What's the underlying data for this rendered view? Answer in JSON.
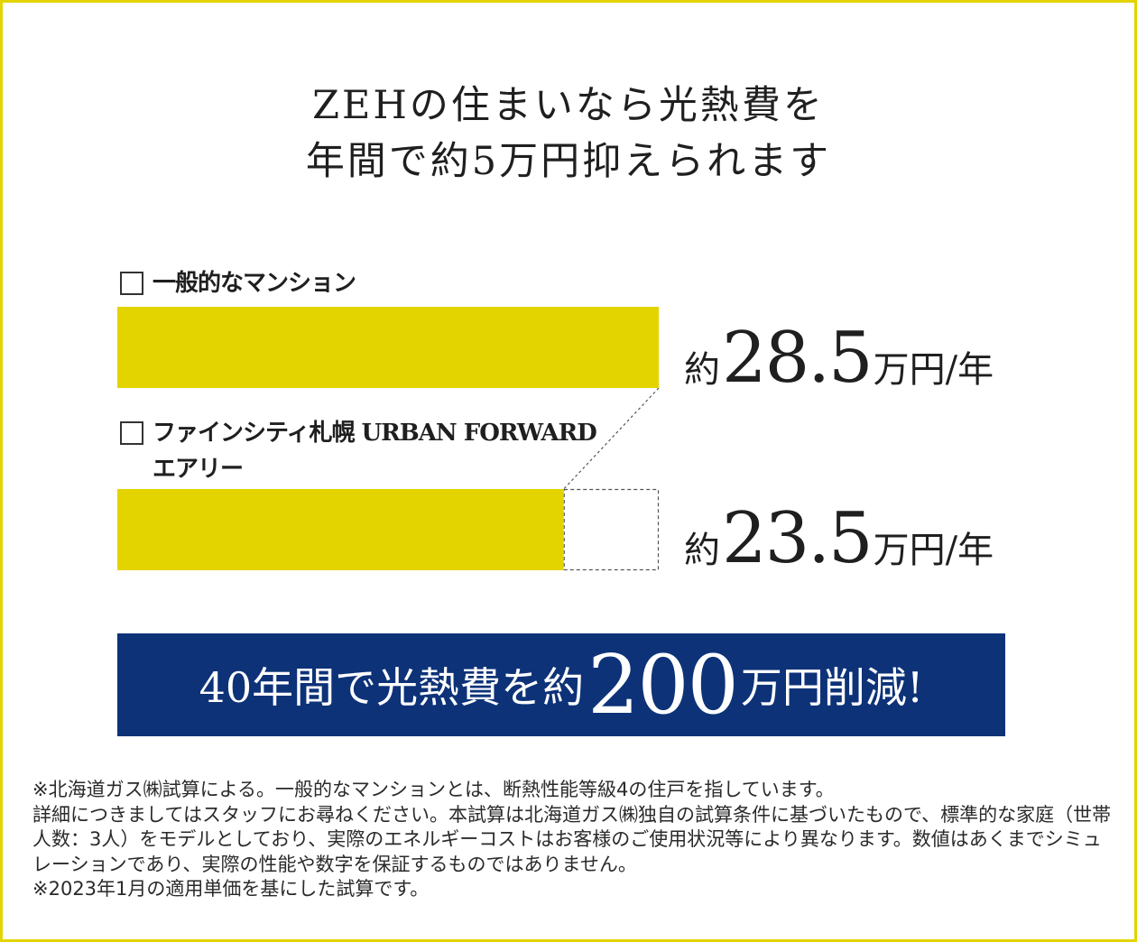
{
  "title": {
    "line1": "ZEHの住まいなら光熱費を",
    "line2": "年間で約5万円抑えられます"
  },
  "chart_data": {
    "type": "bar",
    "categories": [
      "一般的なマンション",
      "ファインシティ札幌 URBAN FORWARD\nエアリー"
    ],
    "values": [
      28.5,
      23.5
    ],
    "value_labels": [
      {
        "prefix": "約",
        "number": "28.5",
        "unit": "万円/年"
      },
      {
        "prefix": "約",
        "number": "23.5",
        "unit": "万円/年"
      }
    ],
    "orientation": "horizontal",
    "xlim": [
      0,
      28.5
    ],
    "bar_color": "#e3d400",
    "highlight_difference": true
  },
  "banner": {
    "pre": "40年間で光熱費を約",
    "number": "200",
    "post": "万円削減!"
  },
  "notes": [
    "※北海道ガス㈱試算による。一般的なマンションとは、断熱性能等級4の住戸を指しています。",
    "詳細につきましてはスタッフにお尋ねください。本試算は北海道ガス㈱独自の試算条件に基づいたもので、標準的な家庭（世帯人数：3人）をモデルとしており、実際のエネルギーコストはお客様のご使用状況等により異なります。数値はあくまでシミュレーションであり、実際の性能や数字を保証するものではありません。",
    "※2023年1月の適用単価を基にした試算です。"
  ],
  "colors": {
    "border": "#e3d400",
    "bar": "#e3d400",
    "banner": "#0d3278"
  }
}
